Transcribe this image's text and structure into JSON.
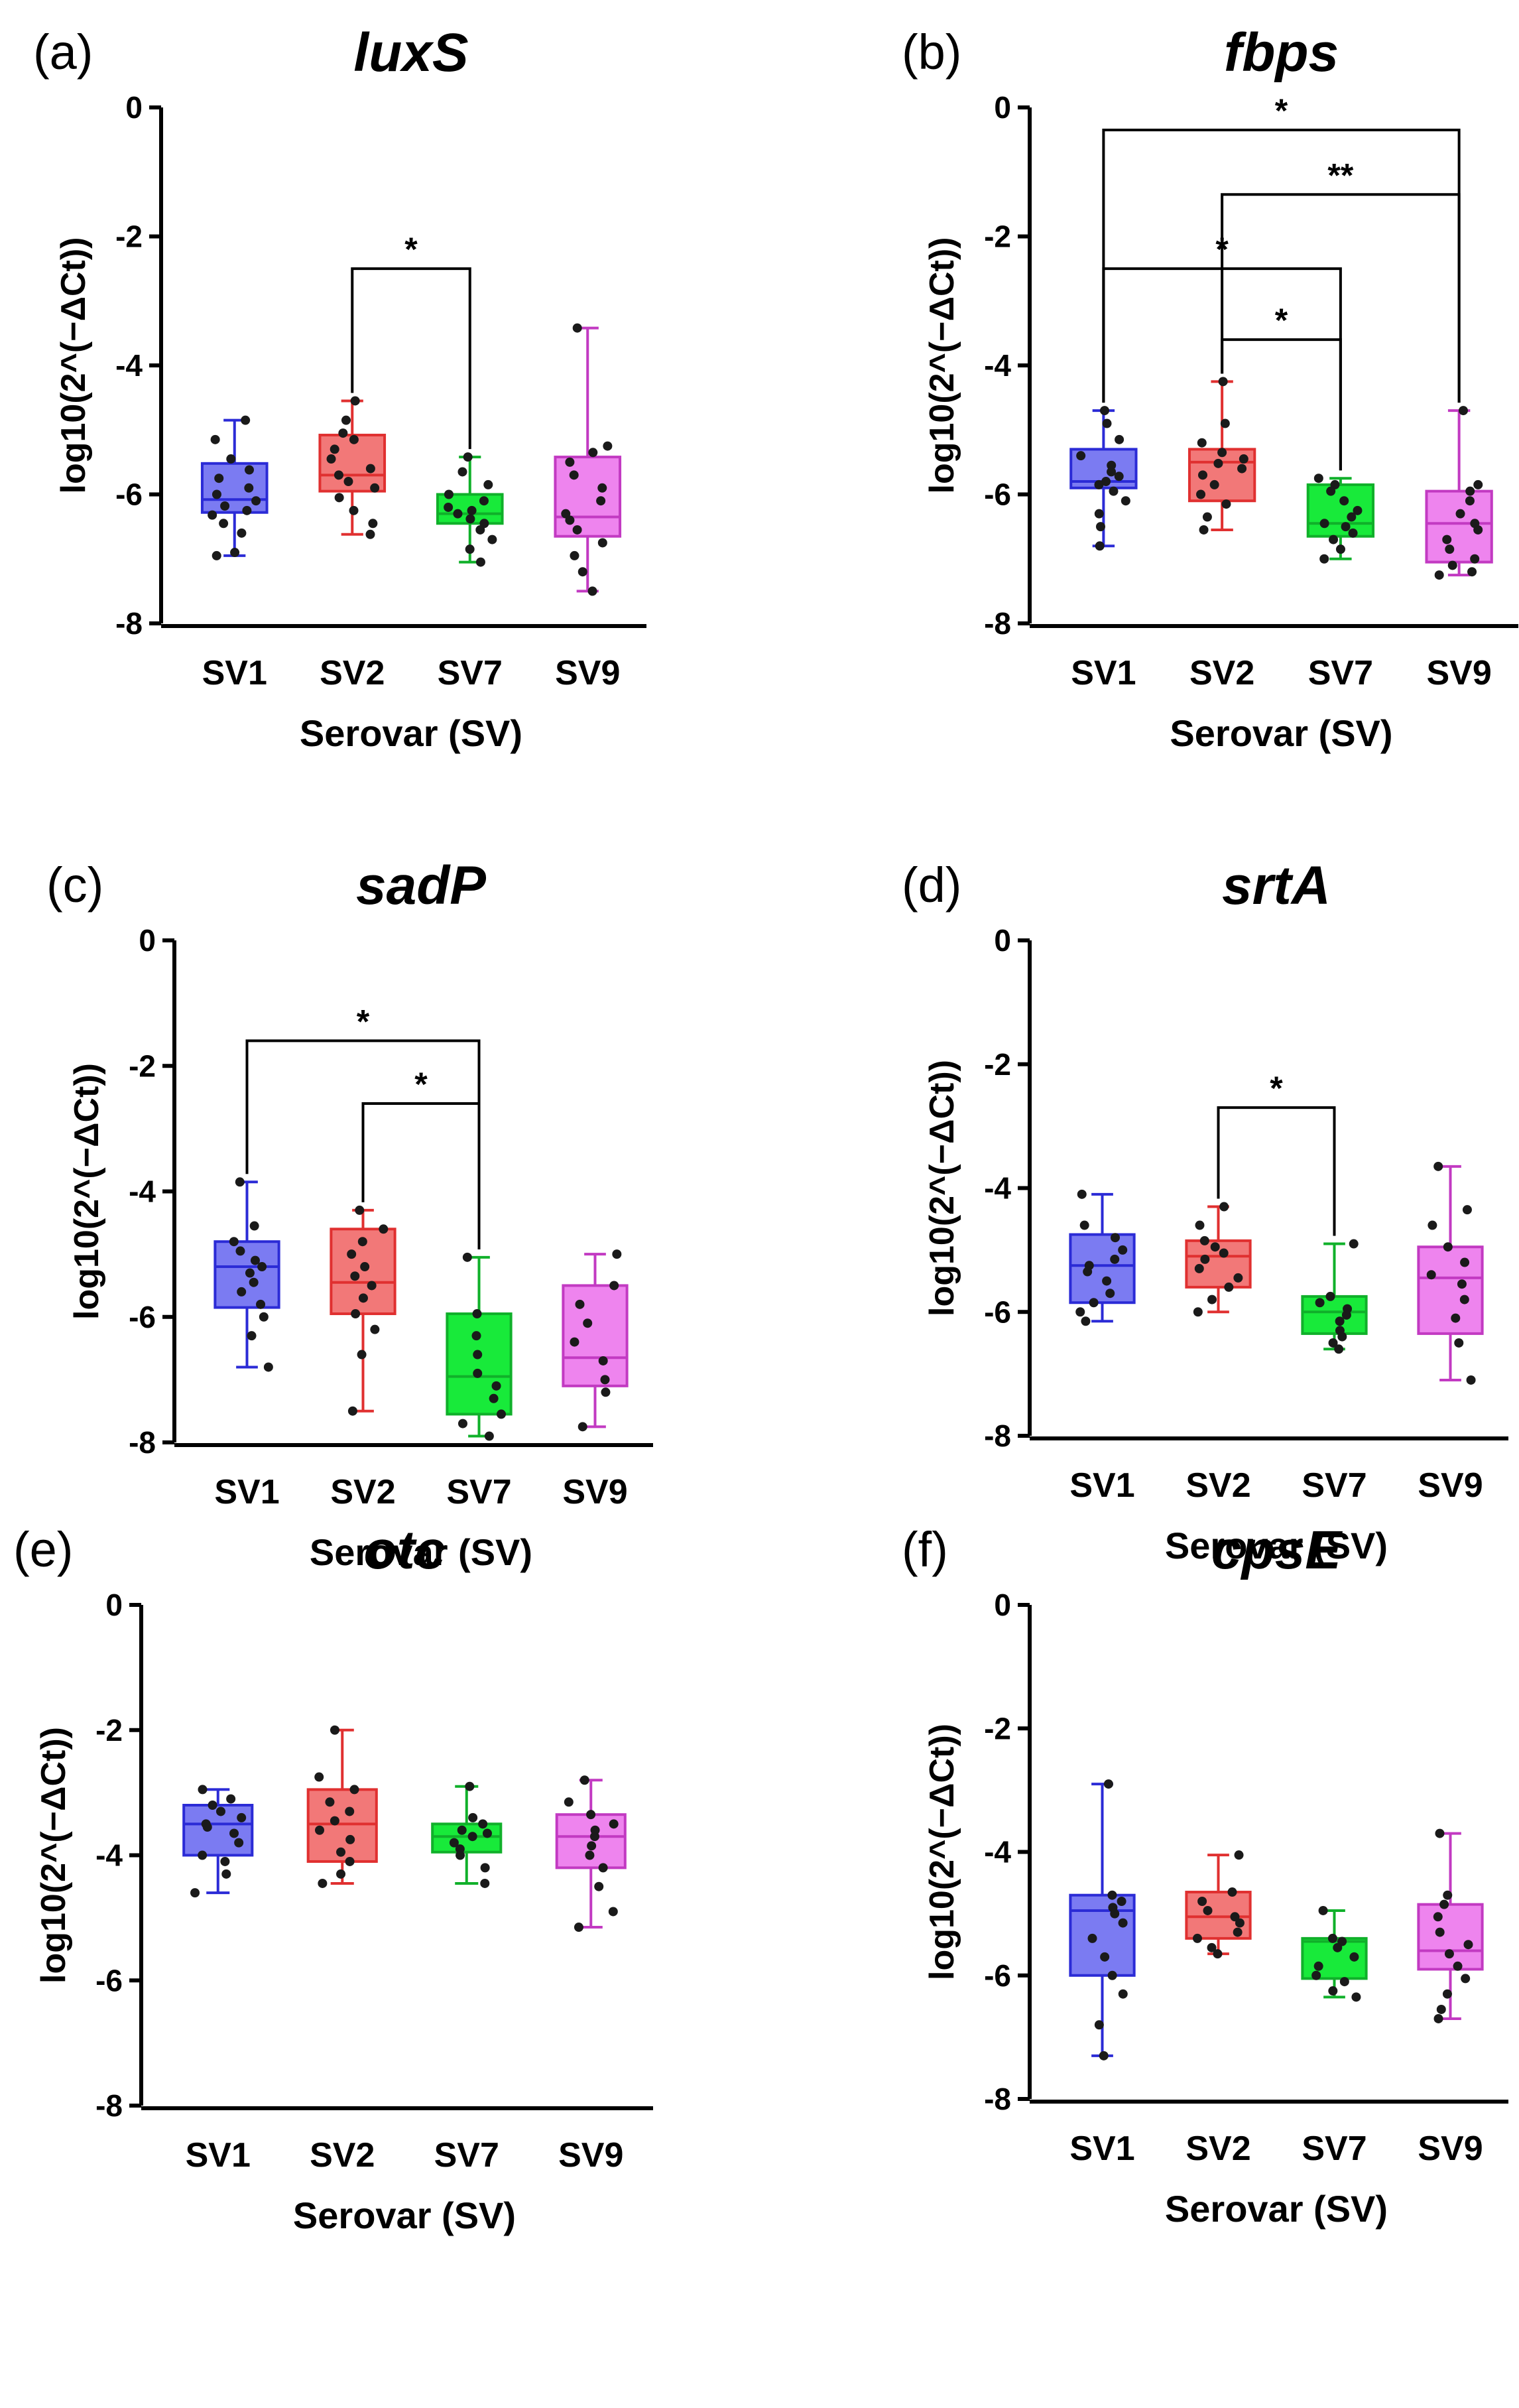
{
  "chart_data": [
    {
      "panel": "(a)",
      "title": "luxS",
      "type": "box",
      "xlabel": "Serovar (SV)",
      "ylabel": "log10(2^(−ΔCt))",
      "ylim": [
        -8,
        0
      ],
      "yticks": [
        "0",
        "-2",
        "-4",
        "-6",
        "-8"
      ],
      "categories": [
        "SV1",
        "SV2",
        "SV7",
        "SV9"
      ],
      "boxes": [
        {
          "min": -6.95,
          "q1": -6.28,
          "median": -6.08,
          "q3": -5.52,
          "max": -4.85,
          "points": [
            -4.85,
            -5.15,
            -5.45,
            -5.62,
            -5.75,
            -5.9,
            -6.0,
            -6.1,
            -6.18,
            -6.25,
            -6.32,
            -6.45,
            -6.6,
            -6.9,
            -6.95
          ]
        },
        {
          "min": -6.62,
          "q1": -5.95,
          "median": -5.7,
          "q3": -5.08,
          "max": -4.55,
          "points": [
            -4.55,
            -4.85,
            -5.05,
            -5.15,
            -5.3,
            -5.45,
            -5.6,
            -5.7,
            -5.8,
            -5.9,
            -6.05,
            -6.25,
            -6.45,
            -6.62
          ]
        },
        {
          "min": -7.05,
          "q1": -6.45,
          "median": -6.3,
          "q3": -6.0,
          "max": -5.42,
          "points": [
            -5.42,
            -5.65,
            -5.85,
            -6.0,
            -6.1,
            -6.2,
            -6.25,
            -6.3,
            -6.38,
            -6.45,
            -6.55,
            -6.7,
            -6.85,
            -7.05
          ]
        },
        {
          "min": -7.5,
          "q1": -6.65,
          "median": -6.35,
          "q3": -5.42,
          "max": -3.42,
          "points": [
            -3.42,
            -5.25,
            -5.35,
            -5.5,
            -5.7,
            -5.9,
            -6.1,
            -6.3,
            -6.4,
            -6.55,
            -6.75,
            -6.95,
            -7.2,
            -7.5
          ]
        }
      ],
      "significance": [
        {
          "from": 1,
          "to": 2,
          "label": "*",
          "y": -2.5
        }
      ]
    },
    {
      "panel": "(b)",
      "title": "fbps",
      "type": "box",
      "xlabel": "Serovar (SV)",
      "ylabel": "log10(2^(−ΔCt))",
      "ylim": [
        -8,
        0
      ],
      "yticks": [
        "0",
        "-2",
        "-4",
        "-6",
        "-8"
      ],
      "categories": [
        "SV1",
        "SV2",
        "SV7",
        "SV9"
      ],
      "boxes": [
        {
          "min": -6.8,
          "q1": -5.9,
          "median": -5.8,
          "q3": -5.3,
          "max": -4.7,
          "points": [
            -4.7,
            -4.9,
            -5.15,
            -5.4,
            -5.55,
            -5.65,
            -5.72,
            -5.8,
            -5.85,
            -5.95,
            -6.1,
            -6.3,
            -6.5,
            -6.8
          ]
        },
        {
          "min": -6.55,
          "q1": -6.1,
          "median": -5.5,
          "q3": -5.3,
          "max": -4.25,
          "points": [
            -4.25,
            -4.9,
            -5.2,
            -5.35,
            -5.45,
            -5.52,
            -5.6,
            -5.7,
            -5.85,
            -6.0,
            -6.15,
            -6.35,
            -6.55
          ]
        },
        {
          "min": -7.0,
          "q1": -6.65,
          "median": -6.45,
          "q3": -5.85,
          "max": -5.75,
          "points": [
            -5.75,
            -5.85,
            -5.95,
            -6.1,
            -6.25,
            -6.35,
            -6.45,
            -6.5,
            -6.6,
            -6.7,
            -6.85,
            -7.0
          ]
        },
        {
          "min": -7.25,
          "q1": -7.05,
          "median": -6.45,
          "q3": -5.95,
          "max": -4.7,
          "points": [
            -4.7,
            -5.85,
            -5.95,
            -6.1,
            -6.3,
            -6.45,
            -6.55,
            -6.7,
            -6.85,
            -7.0,
            -7.1,
            -7.2,
            -7.25
          ]
        }
      ],
      "significance": [
        {
          "from": 0,
          "to": 3,
          "label": "*",
          "y": -0.35
        },
        {
          "from": 1,
          "to": 3,
          "label": "**",
          "y": -1.35
        },
        {
          "from": 0,
          "to": 2,
          "label": "*",
          "y": -2.5
        },
        {
          "from": 1,
          "to": 2,
          "label": "*",
          "y": -3.6
        }
      ]
    },
    {
      "panel": "(c)",
      "title": "sadP",
      "type": "box",
      "xlabel": "Serovar (SV)",
      "ylabel": "log10(2^(−ΔCt))",
      "ylim": [
        -8,
        0
      ],
      "yticks": [
        "0",
        "-2",
        "-4",
        "-6",
        "-8"
      ],
      "categories": [
        "SV1",
        "SV2",
        "SV7",
        "SV9"
      ],
      "boxes": [
        {
          "min": -6.8,
          "q1": -5.85,
          "median": -5.2,
          "q3": -4.8,
          "max": -3.85,
          "points": [
            -3.85,
            -4.55,
            -4.8,
            -4.95,
            -5.1,
            -5.2,
            -5.3,
            -5.45,
            -5.6,
            -5.8,
            -6.0,
            -6.3,
            -6.8
          ]
        },
        {
          "min": -7.5,
          "q1": -5.95,
          "median": -5.45,
          "q3": -4.6,
          "max": -4.3,
          "points": [
            -4.3,
            -4.6,
            -4.8,
            -5.0,
            -5.2,
            -5.35,
            -5.5,
            -5.7,
            -5.95,
            -6.2,
            -6.6,
            -7.5
          ]
        },
        {
          "min": -7.9,
          "q1": -7.55,
          "median": -6.95,
          "q3": -5.95,
          "max": -5.05,
          "points": [
            -5.05,
            -5.95,
            -6.3,
            -6.6,
            -6.9,
            -7.1,
            -7.3,
            -7.55,
            -7.7,
            -7.9
          ]
        },
        {
          "min": -7.75,
          "q1": -7.1,
          "median": -6.65,
          "q3": -5.5,
          "max": -5.0,
          "points": [
            -5.0,
            -5.5,
            -5.8,
            -6.1,
            -6.4,
            -6.7,
            -7.0,
            -7.2,
            -7.75
          ]
        }
      ],
      "significance": [
        {
          "from": 0,
          "to": 2,
          "label": "*",
          "y": -1.6
        },
        {
          "from": 1,
          "to": 2,
          "label": "*",
          "y": -2.6
        }
      ]
    },
    {
      "panel": "(d)",
      "title": "srtA",
      "type": "box",
      "xlabel": "Serovar (SV)",
      "ylabel": "log10(2^(−ΔCt))",
      "ylim": [
        -8,
        0
      ],
      "yticks": [
        "0",
        "-2",
        "-4",
        "-6",
        "-8"
      ],
      "categories": [
        "SV1",
        "SV2",
        "SV7",
        "SV9"
      ],
      "boxes": [
        {
          "min": -6.15,
          "q1": -5.85,
          "median": -5.25,
          "q3": -4.75,
          "max": -4.1,
          "points": [
            -4.1,
            -4.6,
            -4.8,
            -5.0,
            -5.15,
            -5.25,
            -5.35,
            -5.5,
            -5.7,
            -5.85,
            -6.0,
            -6.15
          ]
        },
        {
          "min": -6.0,
          "q1": -5.6,
          "median": -5.1,
          "q3": -4.85,
          "max": -4.3,
          "points": [
            -4.3,
            -4.6,
            -4.85,
            -4.95,
            -5.05,
            -5.15,
            -5.3,
            -5.45,
            -5.6,
            -5.8,
            -6.0
          ]
        },
        {
          "min": -6.6,
          "q1": -6.35,
          "median": -6.0,
          "q3": -5.75,
          "max": -4.9,
          "points": [
            -4.9,
            -5.75,
            -5.85,
            -5.95,
            -6.05,
            -6.15,
            -6.3,
            -6.4,
            -6.5,
            -6.6
          ]
        },
        {
          "min": -7.1,
          "q1": -6.35,
          "median": -5.45,
          "q3": -4.95,
          "max": -3.65,
          "points": [
            -3.65,
            -4.35,
            -4.6,
            -4.95,
            -5.2,
            -5.4,
            -5.55,
            -5.8,
            -6.1,
            -6.5,
            -7.1
          ]
        }
      ],
      "significance": [
        {
          "from": 1,
          "to": 2,
          "label": "*",
          "y": -2.7
        }
      ]
    },
    {
      "panel": "(e)",
      "title": "otc",
      "type": "box",
      "xlabel": "Serovar (SV)",
      "ylabel": "log10(2^(−ΔCt))",
      "ylim": [
        -8,
        0
      ],
      "yticks": [
        "0",
        "-2",
        "-4",
        "-6",
        "-8"
      ],
      "categories": [
        "SV1",
        "SV2",
        "SV7",
        "SV9"
      ],
      "boxes": [
        {
          "min": -4.6,
          "q1": -4.0,
          "median": -3.5,
          "q3": -3.2,
          "max": -2.95,
          "points": [
            -2.95,
            -3.1,
            -3.2,
            -3.3,
            -3.4,
            -3.5,
            -3.55,
            -3.65,
            -3.8,
            -4.0,
            -4.1,
            -4.3,
            -4.6
          ]
        },
        {
          "min": -4.45,
          "q1": -4.1,
          "median": -3.5,
          "q3": -2.95,
          "max": -2.0,
          "points": [
            -2.0,
            -2.75,
            -2.95,
            -3.15,
            -3.3,
            -3.45,
            -3.6,
            -3.75,
            -3.95,
            -4.1,
            -4.3,
            -4.45
          ]
        },
        {
          "min": -4.45,
          "q1": -3.95,
          "median": -3.7,
          "q3": -3.5,
          "max": -2.9,
          "points": [
            -2.9,
            -3.4,
            -3.5,
            -3.6,
            -3.65,
            -3.7,
            -3.8,
            -3.9,
            -4.0,
            -4.2,
            -4.45
          ]
        },
        {
          "min": -5.15,
          "q1": -4.2,
          "median": -3.7,
          "q3": -3.35,
          "max": -2.8,
          "points": [
            -2.8,
            -3.15,
            -3.35,
            -3.5,
            -3.6,
            -3.7,
            -3.85,
            -4.0,
            -4.2,
            -4.5,
            -4.9,
            -5.15
          ]
        }
      ],
      "significance": []
    },
    {
      "panel": "(f)",
      "title": "cpsE",
      "type": "box",
      "xlabel": "Serovar (SV)",
      "ylabel": "log10(2^(−ΔCt))",
      "ylim": [
        -8,
        0
      ],
      "yticks": [
        "0",
        "-2",
        "-4",
        "-6",
        "-8"
      ],
      "categories": [
        "SV1",
        "SV2",
        "SV7",
        "SV9"
      ],
      "boxes": [
        {
          "min": -7.3,
          "q1": -6.0,
          "median": -4.95,
          "q3": -4.7,
          "max": -2.9,
          "points": [
            -2.9,
            -4.7,
            -4.8,
            -4.9,
            -5.0,
            -5.15,
            -5.4,
            -5.7,
            -6.0,
            -6.3,
            -6.8,
            -7.3
          ]
        },
        {
          "min": -5.65,
          "q1": -5.4,
          "median": -5.05,
          "q3": -4.65,
          "max": -4.05,
          "points": [
            -4.05,
            -4.65,
            -4.8,
            -4.95,
            -5.05,
            -5.15,
            -5.3,
            -5.4,
            -5.55,
            -5.65
          ]
        },
        {
          "min": -6.35,
          "q1": -6.05,
          "median": -5.45,
          "q3": -5.4,
          "max": -4.95,
          "points": [
            -4.95,
            -5.4,
            -5.45,
            -5.55,
            -5.7,
            -5.85,
            -6.0,
            -6.1,
            -6.25,
            -6.35
          ]
        },
        {
          "min": -6.7,
          "q1": -5.9,
          "median": -5.6,
          "q3": -4.85,
          "max": -3.7,
          "points": [
            -3.7,
            -4.7,
            -4.85,
            -5.05,
            -5.3,
            -5.5,
            -5.65,
            -5.85,
            -6.05,
            -6.3,
            -6.55,
            -6.7
          ]
        }
      ],
      "significance": []
    }
  ],
  "colors": {
    "SV1": {
      "fill": "#7b7bf2",
      "stroke": "#2b2bd6"
    },
    "SV2": {
      "fill": "#f27878",
      "stroke": "#e03030"
    },
    "SV7": {
      "fill": "#18ea3a",
      "stroke": "#10b02a"
    },
    "SV9": {
      "fill": "#ee84ee",
      "stroke": "#c23ac2"
    },
    "points": "#1a1a1a",
    "axes": "#000000"
  }
}
